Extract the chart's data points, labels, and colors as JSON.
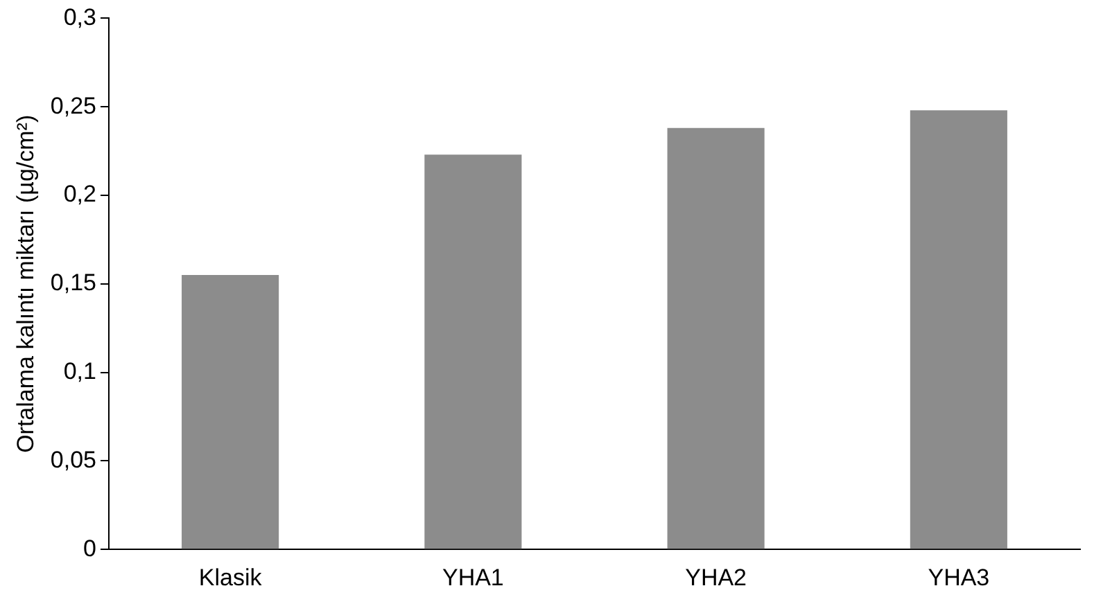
{
  "chart_data": {
    "type": "bar",
    "ylabel": "Ortalama kalıntı miktarı (µg/cm²)",
    "categories": [
      "Klasik",
      "YHA1",
      "YHA2",
      "YHA3"
    ],
    "values": [
      0.155,
      0.223,
      0.238,
      0.248
    ],
    "color": "#8c8c8c",
    "ylim": [
      0,
      0.3
    ],
    "yticks": [
      {
        "value": 0,
        "label": "0"
      },
      {
        "value": 0.05,
        "label": "0,05"
      },
      {
        "value": 0.1,
        "label": "0,1"
      },
      {
        "value": 0.15,
        "label": "0,15"
      },
      {
        "value": 0.2,
        "label": "0,2"
      },
      {
        "value": 0.25,
        "label": "0,25"
      },
      {
        "value": 0.3,
        "label": "0,3"
      }
    ],
    "grid": false,
    "legend": false
  }
}
